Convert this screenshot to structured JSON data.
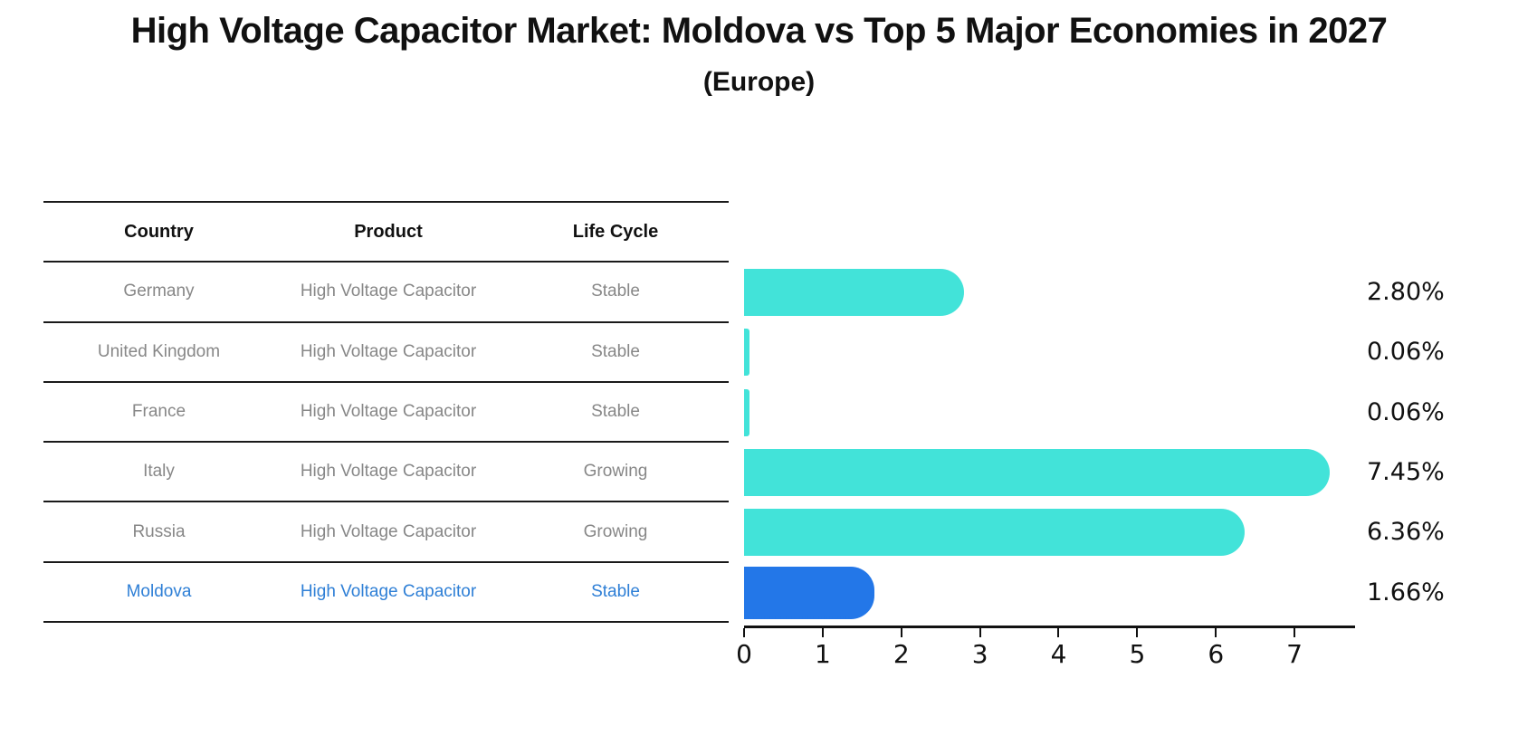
{
  "title": "High Voltage Capacitor Market: Moldova vs Top 5 Major Economies in 2027",
  "subtitle": "(Europe)",
  "table": {
    "headers": [
      "Country",
      "Product",
      "Life Cycle"
    ],
    "rows": [
      {
        "country": "Germany",
        "product": "High Voltage Capacitor",
        "life_cycle": "Stable",
        "highlight": false
      },
      {
        "country": "United Kingdom",
        "product": "High Voltage Capacitor",
        "life_cycle": "Stable",
        "highlight": false
      },
      {
        "country": "France",
        "product": "High Voltage Capacitor",
        "life_cycle": "Stable",
        "highlight": false
      },
      {
        "country": "Italy",
        "product": "High Voltage Capacitor",
        "life_cycle": "Growing",
        "highlight": false
      },
      {
        "country": "Russia",
        "product": "High Voltage Capacitor",
        "life_cycle": "Growing",
        "highlight": false
      },
      {
        "country": "Moldova",
        "product": "High Voltage Capacitor",
        "life_cycle": "Stable",
        "highlight": true
      }
    ]
  },
  "chart_data": {
    "type": "bar",
    "orientation": "horizontal",
    "title": "High Voltage Capacitor Market: Moldova vs Top 5 Major Economies in 2027",
    "subtitle": "(Europe)",
    "categories": [
      "Germany",
      "United Kingdom",
      "France",
      "Italy",
      "Russia",
      "Moldova"
    ],
    "values": [
      2.8,
      0.06,
      0.06,
      7.45,
      6.36,
      1.66
    ],
    "value_labels": [
      "2.80%",
      "0.06%",
      "0.06%",
      "7.45%",
      "6.36%",
      "1.66%"
    ],
    "value_unit": "%",
    "x_ticks": [
      "0",
      "1",
      "2",
      "3",
      "4",
      "5",
      "6",
      "7"
    ],
    "xlim": [
      0,
      7.77
    ],
    "grid": false,
    "legend": false,
    "bar_color": "#42E3D9",
    "highlight_color": "#2377E8",
    "highlight_index": 5,
    "highlight_style": "dotted-border"
  },
  "colors": {
    "background": "#FFFFFF",
    "table_text": "#878787",
    "header_text": "#111111",
    "highlight_text": "#2E7FD6",
    "axis": "#111111"
  }
}
